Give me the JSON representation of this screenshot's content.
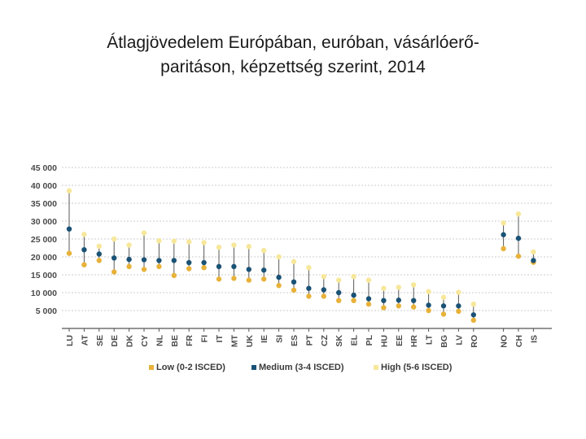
{
  "title_line1": "Átlagjövedelem Európában, euróban, vásárlóerő-",
  "title_line2": "paritáson, képzettség szerint, 2014",
  "chart_data": {
    "type": "scatter",
    "categories": [
      "LU",
      "AT",
      "SE",
      "DE",
      "DK",
      "CY",
      "NL",
      "BE",
      "FR",
      "FI",
      "IT",
      "MT",
      "UK",
      "IE",
      "SI",
      "ES",
      "PT",
      "CZ",
      "SK",
      "EL",
      "PL",
      "HU",
      "EE",
      "HR",
      "LT",
      "BG",
      "LV",
      "RO",
      "NO",
      "CH",
      "IS"
    ],
    "group_break_after": "RO",
    "series": [
      {
        "name": "Low (0-2 ISCED)",
        "color": "#e8b23a",
        "values": [
          21000,
          17800,
          19000,
          15800,
          17300,
          16500,
          17300,
          14800,
          16700,
          17000,
          13800,
          14000,
          13500,
          13800,
          12000,
          10700,
          9000,
          9000,
          7800,
          7800,
          6800,
          5800,
          6300,
          6000,
          5000,
          4000,
          4800,
          2300,
          22300,
          20200,
          18500
        ]
      },
      {
        "name": "Medium (3-4 ISCED)",
        "color": "#1a5276",
        "values": [
          27800,
          22000,
          20800,
          19700,
          19300,
          19200,
          19000,
          19000,
          18400,
          18400,
          17300,
          17300,
          16500,
          16300,
          14300,
          13000,
          11200,
          10800,
          10000,
          9300,
          8300,
          7800,
          7900,
          7800,
          6500,
          6300,
          6300,
          3800,
          26200,
          25200,
          19000
        ]
      },
      {
        "name": "High (5-6 ISCED)",
        "color": "#f7e79a",
        "values": [
          38500,
          26300,
          23000,
          25000,
          23300,
          26700,
          24500,
          24400,
          24200,
          24000,
          22700,
          23300,
          22900,
          21800,
          20000,
          18700,
          17000,
          14500,
          13500,
          14500,
          13500,
          11200,
          11500,
          12200,
          10300,
          8700,
          10100,
          6800,
          29500,
          32000,
          21400
        ]
      }
    ],
    "y_ticks": [
      "45 000",
      "40 000",
      "35 000",
      "30 000",
      "25 000",
      "20 000",
      "15 000",
      "10 000",
      "5 000"
    ],
    "y_tick_values": [
      45000,
      40000,
      35000,
      30000,
      25000,
      20000,
      15000,
      10000,
      5000
    ],
    "ylim": [
      0,
      45000
    ],
    "grid": true,
    "legend": "bottom"
  }
}
